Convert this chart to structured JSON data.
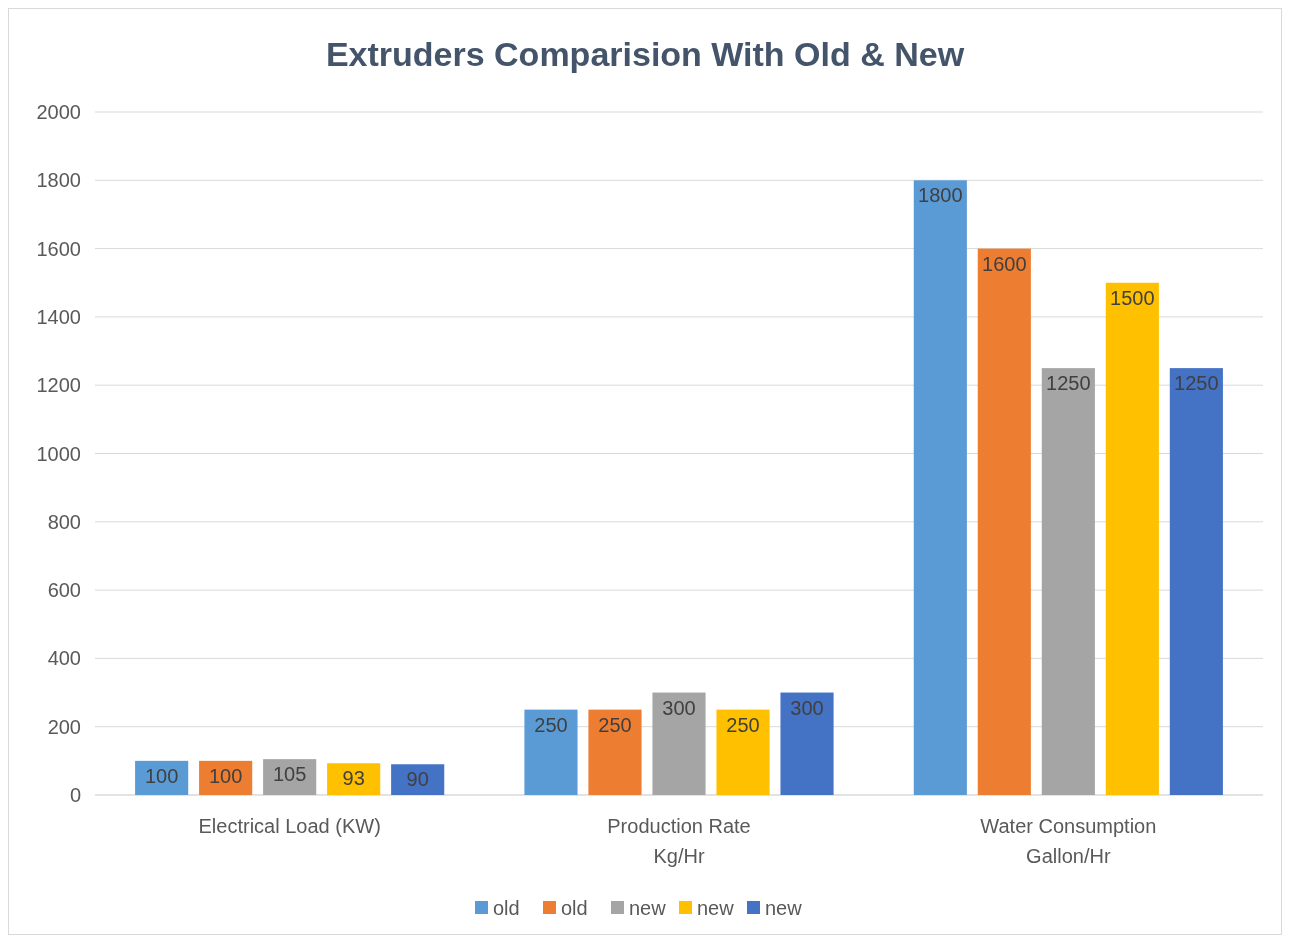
{
  "chart_data": {
    "type": "bar",
    "title": "Extruders Comparision With Old & New",
    "categories": [
      "Electrical Load (KW)",
      "Production Rate\nKg/Hr",
      "Water Consumption\nGallon/Hr"
    ],
    "series": [
      {
        "name": "old",
        "color": "#5b9bd5",
        "values": [
          100,
          250,
          1800
        ]
      },
      {
        "name": "old",
        "color": "#ed7d31",
        "values": [
          100,
          250,
          1600
        ]
      },
      {
        "name": "new",
        "color": "#a5a5a5",
        "values": [
          105,
          300,
          1250
        ]
      },
      {
        "name": "new",
        "color": "#ffc000",
        "values": [
          93,
          250,
          1500
        ]
      },
      {
        "name": "new",
        "color": "#4472c4",
        "values": [
          90,
          300,
          1250
        ]
      }
    ],
    "ylim": [
      0,
      2000
    ],
    "yticks": [
      0,
      200,
      400,
      600,
      800,
      1000,
      1200,
      1400,
      1600,
      1800,
      2000
    ],
    "grid": "y",
    "legend": "bottom",
    "data_labels": true
  }
}
